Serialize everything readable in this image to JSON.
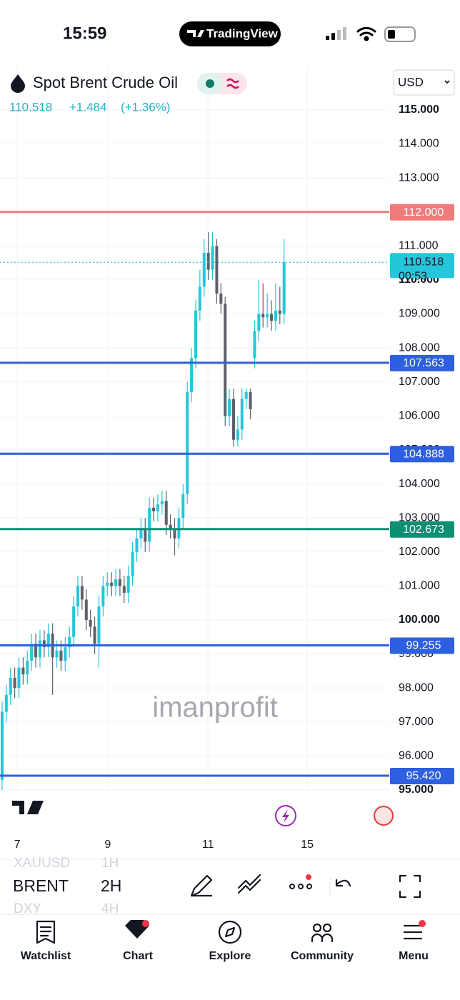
{
  "status_bar": {
    "time": "15:59",
    "app": "TradingView"
  },
  "header": {
    "currency": "USD",
    "price": 110.518,
    "change": "+1.484",
    "change_pct": "(+1.36%)"
  },
  "chart_data": {
    "type": "candlestick",
    "title": "Spot Brent Crude Oil",
    "watermark": "imanprofit",
    "up_color": "#26c6da",
    "down_color": "#5d606b",
    "open": [
      95.3,
      97.3,
      97.8,
      98.3,
      98.0,
      98.6,
      98.4,
      98.8,
      99.3,
      98.9,
      99.4,
      99.2,
      99.6,
      98.9,
      99.1,
      98.8,
      99.2,
      99.5,
      100.4,
      101.0,
      100.6,
      100.0,
      99.8,
      99.3,
      100.4,
      101.0,
      101.1,
      101.0,
      101.2,
      101.0,
      100.8,
      101.3,
      102.0,
      102.4,
      102.7,
      102.3,
      103.3,
      103.2,
      103.4,
      103.5,
      102.8,
      102.7,
      102.4,
      103.0,
      103.7,
      106.7,
      107.7,
      109.1,
      109.8,
      110.8,
      110.3,
      111.0,
      109.6,
      109.3,
      106.0,
      106.5,
      105.3,
      105.6,
      106.5,
      106.7,
      107.7,
      108.5,
      109.0,
      108.9,
      109.0,
      108.8,
      109.1,
      109.0
    ],
    "high": [
      97.6,
      98.1,
      98.6,
      98.6,
      98.9,
      98.9,
      99.1,
      99.6,
      99.6,
      99.7,
      99.7,
      99.9,
      99.9,
      99.4,
      99.4,
      99.5,
      99.8,
      100.7,
      101.3,
      101.3,
      100.9,
      100.3,
      100.1,
      100.7,
      101.3,
      101.4,
      101.4,
      101.5,
      101.5,
      101.3,
      101.6,
      102.3,
      102.7,
      103.0,
      103.0,
      103.6,
      103.6,
      103.7,
      103.8,
      103.8,
      103.1,
      103.0,
      103.3,
      104.0,
      107.0,
      108.0,
      109.4,
      110.3,
      111.2,
      111.4,
      111.4,
      111.2,
      109.9,
      109.5,
      106.8,
      106.8,
      106.0,
      106.8,
      106.8,
      106.8,
      108.8,
      110.0,
      109.9,
      109.6,
      109.4,
      109.9,
      109.8,
      111.2
    ],
    "low": [
      95.0,
      97.0,
      97.5,
      97.7,
      97.7,
      98.1,
      98.1,
      98.5,
      98.6,
      98.6,
      98.9,
      98.9,
      97.8,
      98.6,
      98.5,
      98.5,
      98.9,
      99.2,
      100.1,
      100.3,
      99.7,
      99.5,
      99.0,
      98.6,
      100.1,
      100.7,
      100.7,
      100.7,
      100.7,
      100.5,
      100.5,
      101.0,
      101.7,
      102.1,
      102.0,
      102.0,
      102.9,
      102.9,
      103.1,
      102.5,
      102.4,
      101.9,
      102.1,
      102.7,
      103.4,
      106.4,
      107.4,
      108.8,
      109.5,
      110.0,
      110.0,
      109.3,
      109.0,
      105.7,
      105.7,
      105.1,
      105.1,
      105.3,
      106.2,
      105.9,
      107.4,
      108.2,
      108.6,
      108.6,
      108.5,
      108.5,
      108.7,
      108.7
    ],
    "close": [
      97.3,
      97.8,
      98.3,
      98.0,
      98.6,
      98.4,
      98.8,
      99.3,
      98.9,
      99.4,
      99.2,
      99.6,
      98.9,
      99.1,
      98.8,
      99.2,
      99.5,
      100.4,
      101.0,
      100.6,
      100.0,
      99.8,
      99.3,
      100.4,
      101.0,
      101.1,
      101.0,
      101.2,
      101.0,
      100.8,
      101.3,
      102.0,
      102.4,
      102.7,
      102.3,
      103.3,
      103.2,
      103.4,
      103.5,
      102.8,
      102.7,
      102.4,
      103.0,
      103.7,
      106.7,
      107.7,
      109.1,
      109.8,
      110.8,
      110.3,
      111.0,
      109.6,
      109.3,
      106.0,
      106.5,
      105.3,
      105.6,
      106.5,
      106.7,
      106.2,
      108.5,
      109.0,
      108.9,
      109.0,
      108.8,
      109.1,
      109.0,
      110.518
    ],
    "xlim": [
      -0.5,
      92
    ],
    "xticks": [
      {
        "value": 3.6,
        "label": "7"
      },
      {
        "value": 25.1,
        "label": "9"
      },
      {
        "value": 48.9,
        "label": "11"
      },
      {
        "value": 72.5,
        "label": "15"
      }
    ],
    "ylim": [
      95,
      116.3
    ],
    "yticks": [
      {
        "value": 95,
        "label": "95.000"
      },
      {
        "value": 96,
        "label": "96.000"
      },
      {
        "value": 97,
        "label": "97.000"
      },
      {
        "value": 98,
        "label": "98.000"
      },
      {
        "value": 99,
        "label": "99.000"
      },
      {
        "value": 100,
        "label": "100.000"
      },
      {
        "value": 101,
        "label": "101.000"
      },
      {
        "value": 102,
        "label": "102.000"
      },
      {
        "value": 103,
        "label": "103.000"
      },
      {
        "value": 104,
        "label": "104.000"
      },
      {
        "value": 105,
        "label": "105.000"
      },
      {
        "value": 106,
        "label": "106.000"
      },
      {
        "value": 107,
        "label": "107.000"
      },
      {
        "value": 108,
        "label": "108.000"
      },
      {
        "value": 109,
        "label": "109.000"
      },
      {
        "value": 110,
        "label": "110.000"
      },
      {
        "value": 111,
        "label": "111.000"
      },
      {
        "value": 112,
        "label": "112.000"
      },
      {
        "value": 113,
        "label": "113.000"
      },
      {
        "value": 114,
        "label": "114.000"
      },
      {
        "value": 115,
        "label": "115.000"
      }
    ],
    "grid": true,
    "hlines": [
      {
        "value": 112,
        "label": "112.000",
        "color": "#f07b7b"
      },
      {
        "value": 107.563,
        "label": "107.563",
        "color": "#2d5fe0"
      },
      {
        "value": 104.888,
        "label": "104.888",
        "color": "#2d5fe0"
      },
      {
        "value": 102.673,
        "label": "102.673",
        "color": "#0e8f72"
      },
      {
        "value": 99.255,
        "label": "99.255",
        "color": "#2d5fe0"
      },
      {
        "value": 95.42,
        "label": "95.420",
        "color": "#2d5fe0"
      }
    ],
    "last": {
      "value": 110.518,
      "label": "110.518",
      "countdown": "00:53",
      "color": "#26c6da"
    }
  },
  "toolbar": {
    "symbols": [
      "XAUUSD",
      "BRENT",
      "DXY"
    ],
    "intervals": [
      "1H",
      "2H",
      "4H"
    ]
  },
  "tabs": [
    "Watchlist",
    "Chart",
    "Explore",
    "Community",
    "Menu"
  ]
}
